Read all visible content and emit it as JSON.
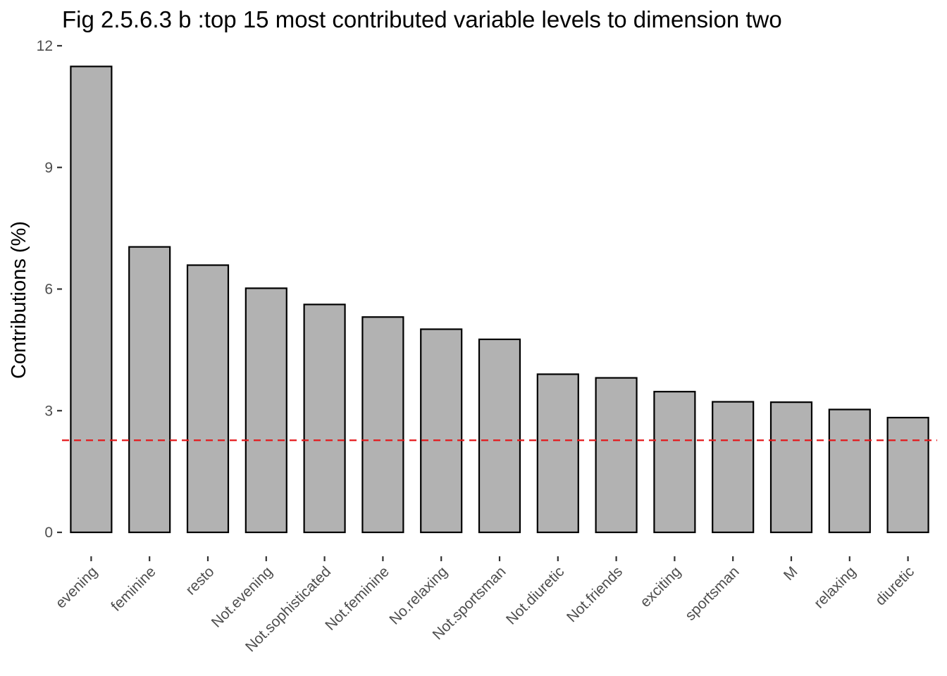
{
  "chart_data": {
    "type": "bar",
    "title": "Fig 2.5.6.3 b :top 15 most contributed variable levels to dimension two",
    "xlabel": "",
    "ylabel": "Contributions (%)",
    "ylim": [
      0,
      12
    ],
    "yticks": [
      "0",
      "3",
      "6",
      "9",
      "12"
    ],
    "categories": [
      "evening",
      "feminine",
      "resto",
      "Not.evening",
      "Not.sophisticated",
      "Not.feminine",
      "No.relaxing",
      "Not.sportsman",
      "Not.diuretic",
      "Not.friends",
      "exciting",
      "sportsman",
      "M",
      "relaxing",
      "diuretic"
    ],
    "values": [
      11.49,
      7.04,
      6.59,
      6.02,
      5.62,
      5.31,
      5.01,
      4.76,
      3.9,
      3.81,
      3.47,
      3.22,
      3.21,
      3.03,
      2.83
    ],
    "reference_line": 2.27,
    "grid": false,
    "legend": "none",
    "colors": {
      "bar_fill": "#b2b2b2",
      "bar_stroke": "#000000",
      "reference_line": "#e41a1c",
      "tick_text": "#4d4d4d"
    }
  }
}
